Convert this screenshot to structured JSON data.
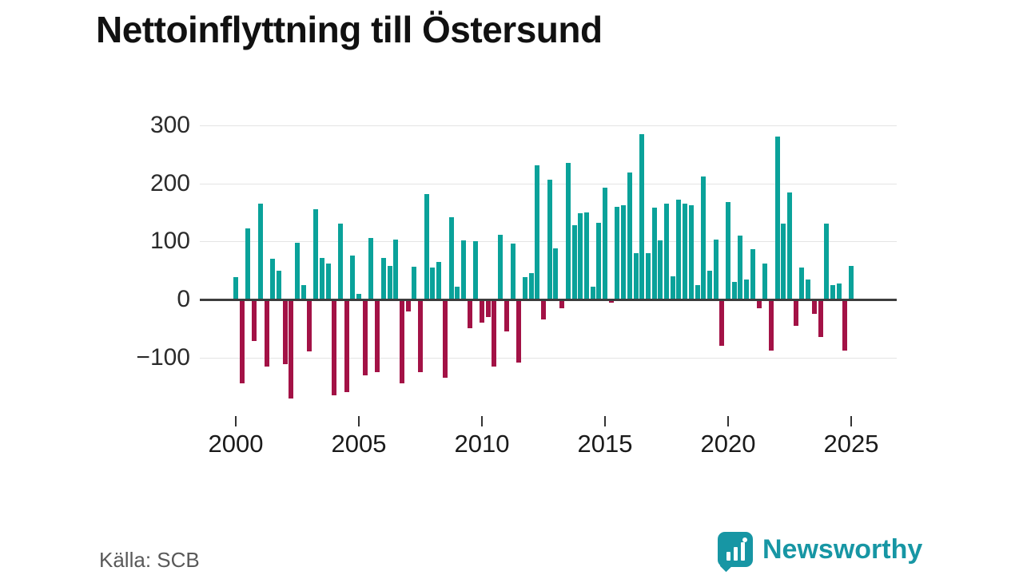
{
  "title": "Nettoinflyttning till Östersund",
  "source": "Källa: SCB",
  "brand": {
    "name": "Newsworthy",
    "color": "#1796a4"
  },
  "colors": {
    "positive": "#0aa29a",
    "negative": "#a31246",
    "grid": "#e4e4e4",
    "zero_line": "#3d3d3d",
    "text": "#111111",
    "muted_text": "#595959"
  },
  "chart_data": {
    "type": "bar",
    "title": "Nettoinflyttning till Östersund",
    "xlabel": "",
    "ylabel": "",
    "x_start": "2000-Q1",
    "frequency": "quarterly",
    "grid": "horizontal",
    "legend": "none",
    "ylim": [
      -190,
      310
    ],
    "yticks": [
      -100,
      0,
      100,
      200,
      300
    ],
    "xticks": [
      2000,
      2005,
      2010,
      2015,
      2020,
      2025
    ],
    "values": [
      38,
      -145,
      122,
      -72,
      165,
      -115,
      70,
      50,
      -112,
      -170,
      97,
      25,
      -90,
      155,
      72,
      62,
      -165,
      131,
      -160,
      75,
      10,
      -130,
      106,
      -125,
      72,
      58,
      103,
      -145,
      -20,
      56,
      -125,
      181,
      55,
      65,
      -135,
      142,
      22,
      102,
      -50,
      101,
      -40,
      -30,
      -115,
      112,
      -55,
      96,
      -108,
      38,
      45,
      231,
      -35,
      207,
      88,
      -15,
      235,
      128,
      148,
      150,
      22,
      132,
      192,
      -5,
      160,
      162,
      219,
      80,
      285,
      80,
      158,
      102,
      165,
      40,
      172,
      165,
      162,
      25,
      212,
      50,
      103,
      -80,
      168,
      30,
      110,
      35,
      86,
      -15,
      62,
      -88,
      280,
      130,
      184,
      -45,
      55,
      35,
      -25,
      -65,
      131,
      25,
      27,
      -88,
      58
    ]
  }
}
